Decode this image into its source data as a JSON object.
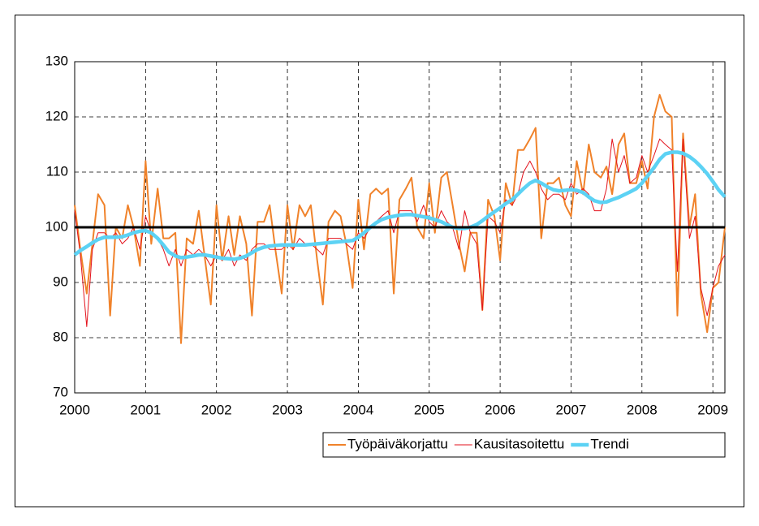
{
  "chart_data": {
    "type": "line",
    "x": [
      2000,
      2000.08,
      2000.17,
      2000.25,
      2000.33,
      2000.42,
      2000.5,
      2000.58,
      2000.67,
      2000.75,
      2000.83,
      2000.92,
      2001,
      2001.08,
      2001.17,
      2001.25,
      2001.33,
      2001.42,
      2001.5,
      2001.58,
      2001.67,
      2001.75,
      2001.83,
      2001.92,
      2002,
      2002.08,
      2002.17,
      2002.25,
      2002.33,
      2002.42,
      2002.5,
      2002.58,
      2002.67,
      2002.75,
      2002.83,
      2002.92,
      2003,
      2003.08,
      2003.17,
      2003.25,
      2003.33,
      2003.42,
      2003.5,
      2003.58,
      2003.67,
      2003.75,
      2003.83,
      2003.92,
      2004,
      2004.08,
      2004.17,
      2004.25,
      2004.33,
      2004.42,
      2004.5,
      2004.58,
      2004.67,
      2004.75,
      2004.83,
      2004.92,
      2005,
      2005.08,
      2005.17,
      2005.25,
      2005.33,
      2005.42,
      2005.5,
      2005.58,
      2005.67,
      2005.75,
      2005.83,
      2005.92,
      2006,
      2006.08,
      2006.17,
      2006.25,
      2006.33,
      2006.42,
      2006.5,
      2006.58,
      2006.67,
      2006.75,
      2006.83,
      2006.92,
      2007,
      2007.08,
      2007.17,
      2007.25,
      2007.33,
      2007.42,
      2007.5,
      2007.58,
      2007.67,
      2007.75,
      2007.83,
      2007.92,
      2008,
      2008.08,
      2008.17,
      2008.25,
      2008.33,
      2008.42,
      2008.5,
      2008.58,
      2008.67,
      2008.75,
      2008.83,
      2008.92,
      2009,
      2009.08,
      2009.17
    ],
    "series": [
      {
        "name": "Työpäiväkorjattu",
        "color": "#f0822a",
        "width": 2,
        "values": [
          104,
          96,
          88,
          97,
          106,
          104,
          84,
          100,
          98,
          104,
          100,
          93,
          112,
          97,
          107,
          98,
          98,
          99,
          79,
          98,
          97,
          103,
          95,
          86,
          104,
          94,
          102,
          95,
          102,
          97,
          84,
          101,
          101,
          104,
          96,
          88,
          104,
          96,
          104,
          102,
          104,
          94,
          86,
          101,
          103,
          102,
          97,
          89,
          105,
          96,
          106,
          107,
          106,
          107,
          88,
          105,
          107,
          109,
          100,
          98,
          108,
          99,
          109,
          110,
          104,
          97,
          92,
          99,
          99,
          85,
          105,
          102,
          94,
          108,
          104,
          114,
          114,
          116,
          118,
          98,
          108,
          108,
          109,
          104,
          102,
          112,
          106,
          115,
          110,
          109,
          111,
          106,
          115,
          117,
          108,
          108,
          112,
          107,
          120,
          124,
          121,
          120,
          84,
          117,
          100,
          106,
          88,
          81,
          89,
          90,
          100
        ]
      },
      {
        "name": "Kausitasoitettu",
        "color": "#e3121c",
        "width": 1,
        "values": [
          103,
          95,
          82,
          96,
          99,
          99,
          98,
          99,
          97,
          98,
          100,
          96,
          102,
          99,
          98,
          96,
          93,
          96,
          93,
          96,
          95,
          96,
          95,
          93,
          95,
          94,
          96,
          93,
          95,
          94,
          96,
          97,
          97,
          96,
          96,
          96,
          97,
          96,
          98,
          97,
          97,
          96,
          95,
          98,
          98,
          98,
          97,
          96,
          99,
          98,
          100,
          101,
          102,
          103,
          99,
          103,
          103,
          103,
          101,
          104,
          101,
          100,
          103,
          101,
          100,
          96,
          103,
          99,
          97,
          85,
          102,
          101,
          99,
          105,
          104,
          106,
          110,
          112,
          110,
          107,
          105,
          106,
          106,
          105,
          108,
          106,
          107,
          106,
          103,
          103,
          107,
          116,
          110,
          113,
          108,
          109,
          113,
          110,
          113,
          116,
          115,
          114,
          92,
          116,
          98,
          102,
          89,
          84,
          89,
          93,
          95
        ]
      },
      {
        "name": "Trendi",
        "color": "#5cd2f4",
        "width": 4.5,
        "values": [
          95,
          95.8,
          96.5,
          97.2,
          97.8,
          98.2,
          98.2,
          98.2,
          98.3,
          98.6,
          99,
          99.3,
          99.4,
          99,
          98,
          96.8,
          95.5,
          94.8,
          94.5,
          94.6,
          94.8,
          95,
          95,
          94.8,
          94.6,
          94.4,
          94.3,
          94.2,
          94.4,
          94.8,
          95.4,
          96,
          96.4,
          96.6,
          96.7,
          96.8,
          96.8,
          96.8,
          96.8,
          96.8,
          96.9,
          97,
          97.1,
          97.2,
          97.3,
          97.4,
          97.5,
          97.6,
          98.2,
          99,
          100,
          100.8,
          101.4,
          101.8,
          102,
          102.2,
          102.3,
          102.3,
          102.1,
          101.9,
          101.7,
          101.4,
          101,
          100.5,
          100,
          99.8,
          99.8,
          100,
          100.5,
          101.2,
          102,
          102.8,
          103.5,
          104.3,
          105,
          106,
          107,
          108,
          108.5,
          108,
          107.3,
          106.8,
          106.6,
          106.7,
          106.8,
          106.7,
          106.3,
          105.5,
          104.8,
          104.5,
          104.6,
          105,
          105.4,
          105.9,
          106.4,
          107,
          108,
          109.3,
          110.8,
          112.3,
          113.3,
          113.6,
          113.6,
          113.4,
          112.8,
          112,
          111,
          109.7,
          108.3,
          106.8,
          105.5
        ]
      }
    ],
    "reference_line": 100,
    "xlim": [
      2000,
      2009.17
    ],
    "xticks": [
      2000,
      2001,
      2002,
      2003,
      2004,
      2005,
      2006,
      2007,
      2008,
      2009
    ],
    "ylim": [
      70,
      130
    ],
    "yticks": [
      70,
      80,
      90,
      100,
      110,
      120,
      130
    ],
    "grid": true,
    "legend": "bottom-right"
  }
}
